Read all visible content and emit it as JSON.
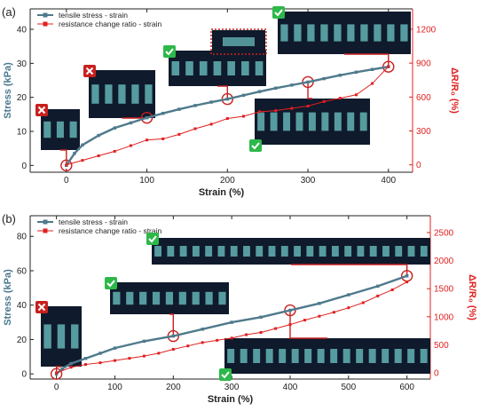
{
  "chart_data": [
    {
      "panel_label": "(a)",
      "type": "line",
      "xlabel": "Strain (%)",
      "ylabel": "Stress (kPa)",
      "y2label": "ΔR/R₀ (%)",
      "xlim": [
        -45,
        430
      ],
      "ylim": [
        -2,
        46
      ],
      "y2lim": [
        -65,
        1380
      ],
      "xticks": [
        "0",
        "100",
        "200",
        "300",
        "400"
      ],
      "yticks": [
        "0",
        "10",
        "20",
        "30",
        "40"
      ],
      "y2ticks": [
        "0",
        "300",
        "600",
        "900",
        "1200"
      ],
      "legend": "top-left",
      "series": [
        {
          "name": "tensile stress - strain",
          "axis": "left",
          "color": "#4f7a8c",
          "marker": "square",
          "x": [
            0,
            10,
            20,
            40,
            60,
            80,
            100,
            120,
            140,
            160,
            180,
            200,
            220,
            240,
            260,
            280,
            300,
            320,
            340,
            360,
            380,
            400
          ],
          "y": [
            0,
            3.5,
            6,
            8.8,
            11,
            12.5,
            14,
            15.3,
            16.5,
            17.6,
            18.6,
            19.5,
            20.6,
            21.7,
            22.7,
            23.6,
            24.5,
            25.5,
            26.5,
            27.4,
            28.2,
            29
          ]
        },
        {
          "name": "resistance change ratio - strain",
          "axis": "right",
          "color": "#e02020",
          "marker": "square",
          "x": [
            0,
            20,
            40,
            60,
            80,
            100,
            120,
            140,
            160,
            180,
            200,
            220,
            240,
            260,
            280,
            300,
            320,
            340,
            360,
            380,
            400
          ],
          "y": [
            0,
            40,
            80,
            120,
            170,
            220,
            230,
            270,
            320,
            360,
            410,
            430,
            470,
            480,
            500,
            520,
            560,
            590,
            620,
            720,
            870
          ]
        }
      ],
      "annotations": [
        {
          "strain": 0,
          "status": "fail"
        },
        {
          "strain": 100,
          "status": "fail"
        },
        {
          "strain": 200,
          "status": "pass"
        },
        {
          "strain": 300,
          "status": "pass"
        },
        {
          "strain": 400,
          "status": "pass"
        }
      ]
    },
    {
      "panel_label": "(b)",
      "type": "line",
      "xlabel": "Strain (%)",
      "ylabel": "Stress (kPa)",
      "y2label": "ΔR/R₀ (%)",
      "xlim": [
        -45,
        640
      ],
      "ylim": [
        -3,
        92
      ],
      "y2lim": [
        -110,
        2800
      ],
      "xticks": [
        "0",
        "100",
        "200",
        "300",
        "400",
        "500",
        "600"
      ],
      "yticks": [
        "0",
        "20",
        "40",
        "60",
        "80"
      ],
      "y2ticks": [
        "0",
        "500",
        "1000",
        "1500",
        "2000",
        "2500"
      ],
      "legend": "top-left",
      "series": [
        {
          "name": "tensile stress - strain",
          "axis": "left",
          "color": "#4f7a8c",
          "marker": "square",
          "x": [
            0,
            10,
            25,
            50,
            75,
            100,
            150,
            200,
            250,
            300,
            350,
            400,
            450,
            500,
            550,
            600
          ],
          "y": [
            0,
            3,
            6,
            9,
            12,
            15,
            19,
            22,
            26,
            30,
            33,
            37,
            41,
            46,
            51,
            57
          ]
        },
        {
          "name": "resistance change ratio - strain",
          "axis": "right",
          "color": "#e02020",
          "marker": "square",
          "x": [
            0,
            25,
            50,
            75,
            100,
            125,
            150,
            175,
            200,
            225,
            250,
            275,
            300,
            325,
            350,
            375,
            400,
            425,
            450,
            475,
            500,
            525,
            550,
            575,
            600
          ],
          "y": [
            0,
            100,
            150,
            180,
            220,
            260,
            300,
            350,
            420,
            480,
            540,
            580,
            620,
            680,
            720,
            790,
            860,
            940,
            1010,
            1080,
            1160,
            1250,
            1370,
            1480,
            1620
          ]
        }
      ],
      "annotations": [
        {
          "strain": 0,
          "status": "fail"
        },
        {
          "strain": 200,
          "status": "pass"
        },
        {
          "strain": 400,
          "status": "pass"
        },
        {
          "strain": 600,
          "status": "pass"
        }
      ]
    }
  ],
  "colors": {
    "stress": "#4f7a8c",
    "resistance": "#e02020",
    "pass": "#2db84a",
    "fail": "#c8201e"
  }
}
